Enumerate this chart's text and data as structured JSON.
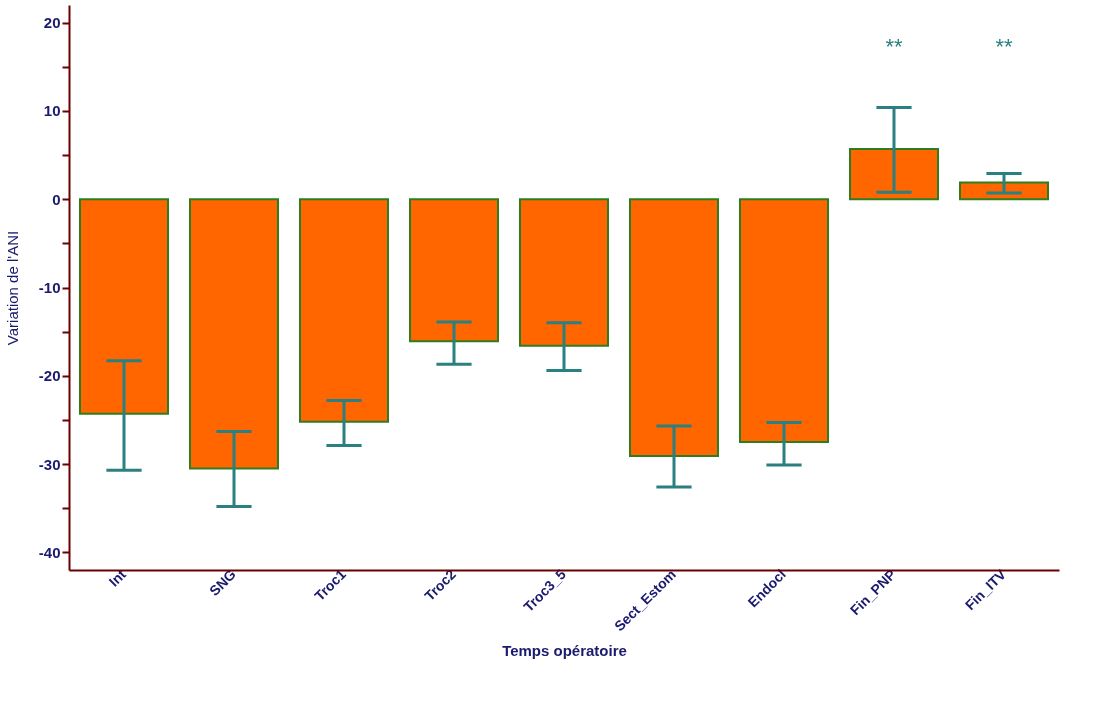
{
  "chart_data": {
    "type": "bar",
    "xlabel": "Temps opératoire",
    "ylabel": "Variation de l'ANI",
    "categories": [
      "Int",
      "SNG",
      "Troc1",
      "Troc2",
      "Troc3_5",
      "Sect_Estom",
      "Endocl",
      "Fin_PNP",
      "Fin_ITV"
    ],
    "values": [
      -24.3,
      -30.5,
      -25.2,
      -16.1,
      -16.6,
      -29.1,
      -27.5,
      5.7,
      1.9
    ],
    "errors": [
      [
        -30.7,
        -18.3
      ],
      [
        -34.8,
        -26.3
      ],
      [
        -27.9,
        -22.8
      ],
      [
        -18.7,
        -13.9
      ],
      [
        -19.4,
        -14.0
      ],
      [
        -32.6,
        -25.7
      ],
      [
        -30.1,
        -25.3
      ],
      [
        0.8,
        10.4
      ],
      [
        0.7,
        2.9
      ]
    ],
    "color": "#ff6600",
    "ylim": [
      -42,
      22
    ],
    "yticks": [
      -40,
      {
        "value": -35,
        "label": null
      },
      -30,
      {
        "value": -25,
        "label": null
      },
      -20,
      {
        "value": -15,
        "label": null
      },
      -10,
      {
        "value": -5,
        "label": null
      },
      0,
      {
        "value": 5,
        "label": null
      },
      10,
      {
        "value": 15,
        "label": null
      },
      20
    ],
    "grid": false,
    "annotations": [
      "**",
      "**"
    ]
  }
}
